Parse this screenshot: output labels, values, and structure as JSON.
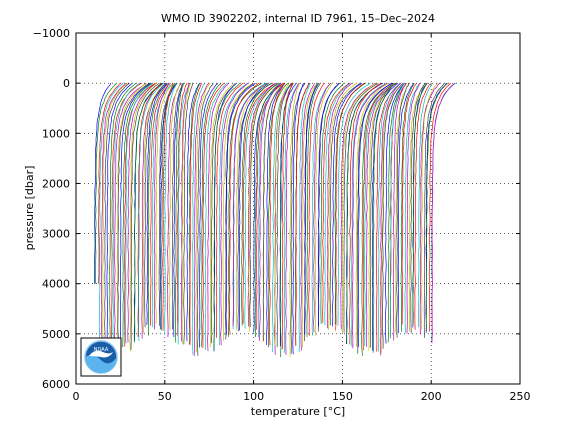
{
  "chart_data": {
    "type": "line",
    "title": "WMO ID 3902202, internal ID 7961, 15–Dec–2024",
    "xlabel": "temperature [",
    "xlabel_unit": "°C",
    "xlabel_end": "]",
    "ylabel": "pressure [dbar]",
    "xlim": [
      0,
      250
    ],
    "ylim": [
      -1000,
      6000
    ],
    "y_reversed": true,
    "grid": true,
    "grid_style": "dotted",
    "x_ticks": [
      0,
      50,
      100,
      150,
      200,
      250
    ],
    "y_ticks": [
      -1000,
      0,
      1000,
      2000,
      3000,
      4000,
      5000,
      6000
    ],
    "x_tick_labels": [
      "0",
      "50",
      "100",
      "150",
      "200",
      "250"
    ],
    "y_tick_labels": [
      "−1000",
      "0",
      "1000",
      "2000",
      "3000",
      "4000",
      "5000",
      "6000"
    ],
    "series_description": "waterfall of temperature profiles, each offset in x",
    "profile_count": 180,
    "first_profile_deep_value": 10,
    "last_profile_deep_value": 201,
    "surface_pressure": 0,
    "deep_pressure_range": [
      4000,
      5600
    ],
    "series_colors": [
      "#0000ff",
      "#008000",
      "#ff0000",
      "#00bfbf",
      "#bf00bf",
      "#bfbf00",
      "#404040"
    ],
    "logo": "noaa-logo"
  }
}
